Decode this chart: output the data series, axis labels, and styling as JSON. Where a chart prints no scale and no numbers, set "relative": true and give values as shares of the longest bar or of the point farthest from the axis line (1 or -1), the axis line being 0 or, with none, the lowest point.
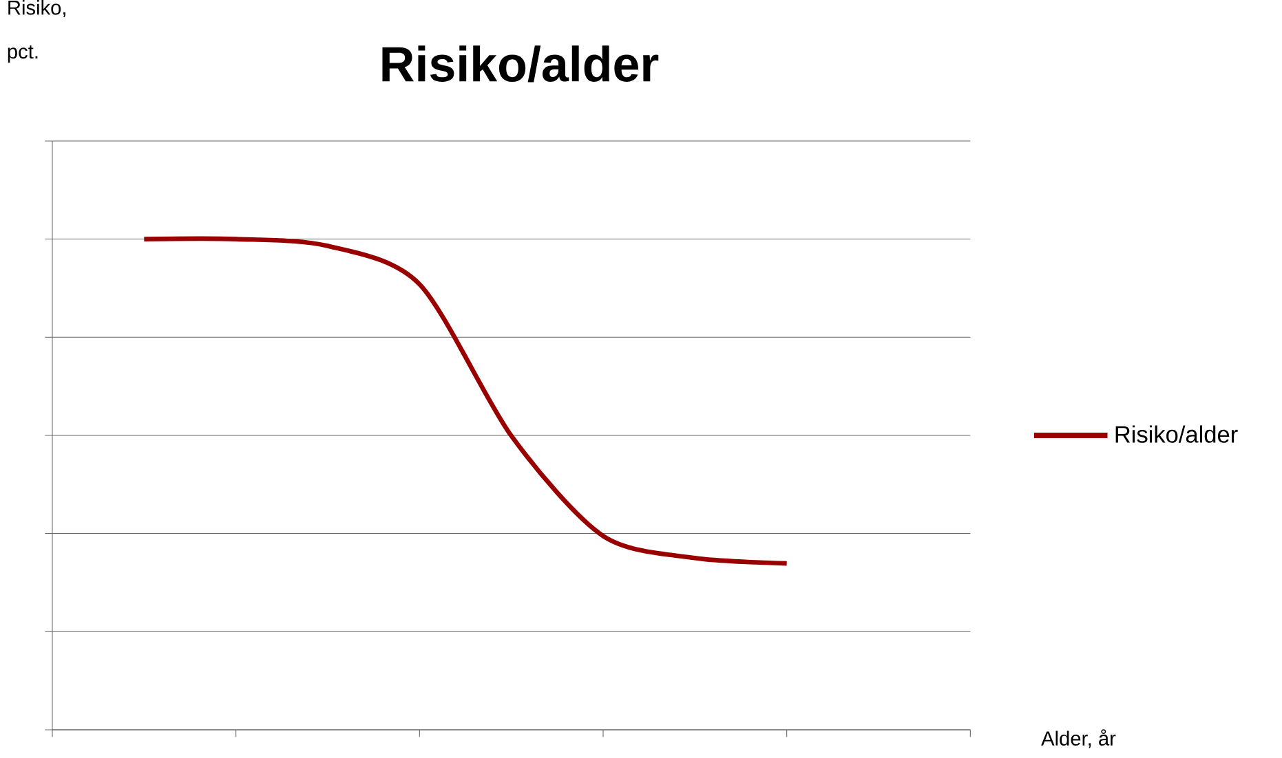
{
  "chart_data": {
    "type": "line",
    "title": "Risiko/alder",
    "xlabel": "Alder, år",
    "ylabel": "Risiko, pct.",
    "categories": [
      null,
      null,
      null,
      null,
      null,
      null,
      null,
      null,
      null,
      null,
      null
    ],
    "relative": true,
    "grid": "y",
    "legend": "right",
    "series": [
      {
        "name": "Risiko/alder",
        "color": "#990000",
        "values": [
          null,
          1.0,
          1.0,
          0.986,
          0.908,
          0.599,
          0.395,
          0.35,
          0.339,
          null,
          null
        ]
      }
    ]
  }
}
